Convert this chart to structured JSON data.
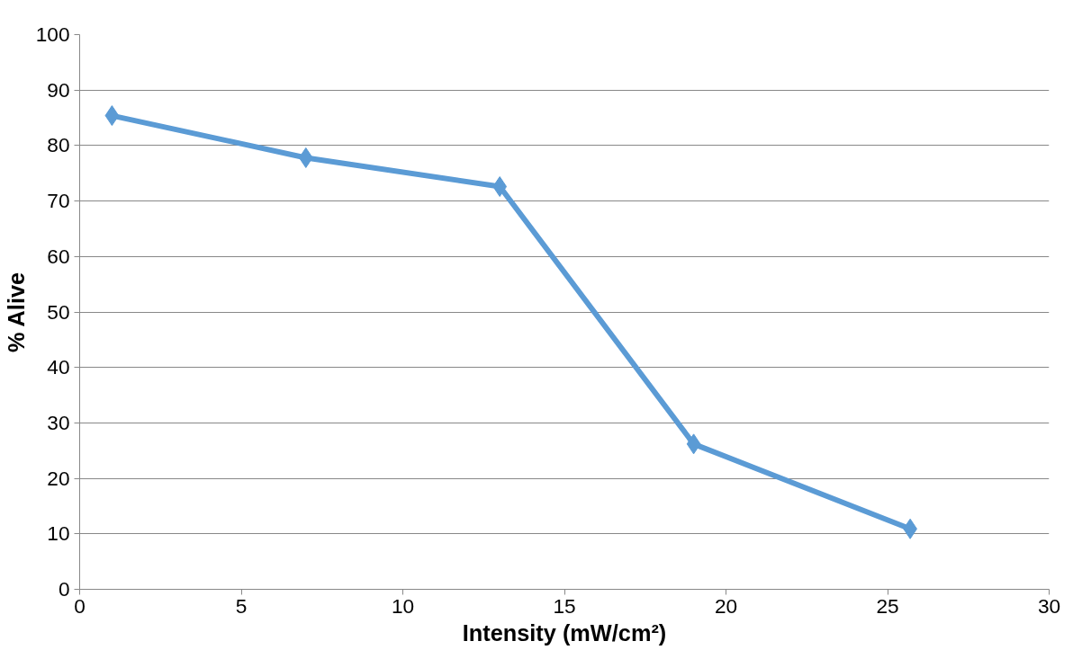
{
  "chart_data": {
    "type": "line",
    "xlabel": "Intensity (mW/cm²)",
    "ylabel": "% Alive",
    "x": [
      1.0,
      7.0,
      13.0,
      19.0,
      25.7
    ],
    "series": [
      {
        "color": "#5b9bd5",
        "values": [
          85.4,
          77.8,
          72.6,
          26.2,
          10.9
        ]
      }
    ],
    "xlim": [
      0,
      30
    ],
    "xticks": [
      0,
      5,
      10,
      15,
      20,
      25,
      30
    ],
    "ylim": [
      0,
      100
    ],
    "yticks": [
      0,
      10,
      20,
      30,
      40,
      50,
      60,
      70,
      80,
      90,
      100
    ],
    "grid": "y",
    "marker": "diamond",
    "line_style": "solid"
  }
}
